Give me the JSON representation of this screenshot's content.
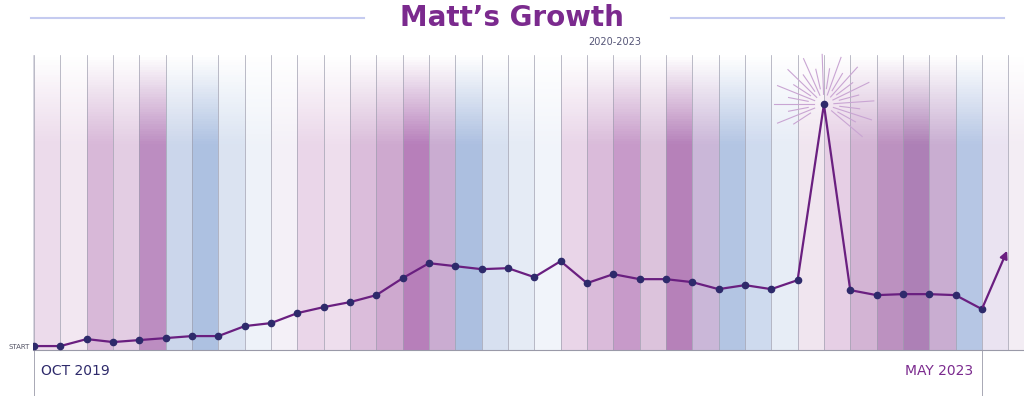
{
  "chart_data": {
    "type": "line",
    "title": "Matt’s Growth",
    "subtitle": "2020-2023",
    "categories": [
      "OCT 2019",
      null,
      null,
      null,
      null,
      null,
      null,
      null,
      null,
      null,
      null,
      null,
      null,
      null,
      null,
      null,
      null,
      null,
      null,
      null,
      null,
      null,
      null,
      null,
      null,
      null,
      null,
      null,
      null,
      null,
      null,
      null,
      null,
      null,
      null,
      null,
      "MAY 2023",
      null
    ],
    "values": [
      0,
      0,
      7,
      4,
      6,
      8,
      10,
      10,
      20,
      23,
      33,
      39,
      44,
      51,
      68,
      83,
      80,
      77,
      78,
      69,
      85,
      63,
      72,
      67,
      67,
      64,
      57,
      61,
      57,
      66,
      242,
      56,
      51,
      52,
      52,
      51,
      37,
      98
    ],
    "color": "#6a1f80",
    "marker": "o",
    "line_style": "solid",
    "ylim": [
      -4,
      291
    ],
    "yticks": [
      {
        "value": 0,
        "label": "START"
      }
    ]
  }
}
